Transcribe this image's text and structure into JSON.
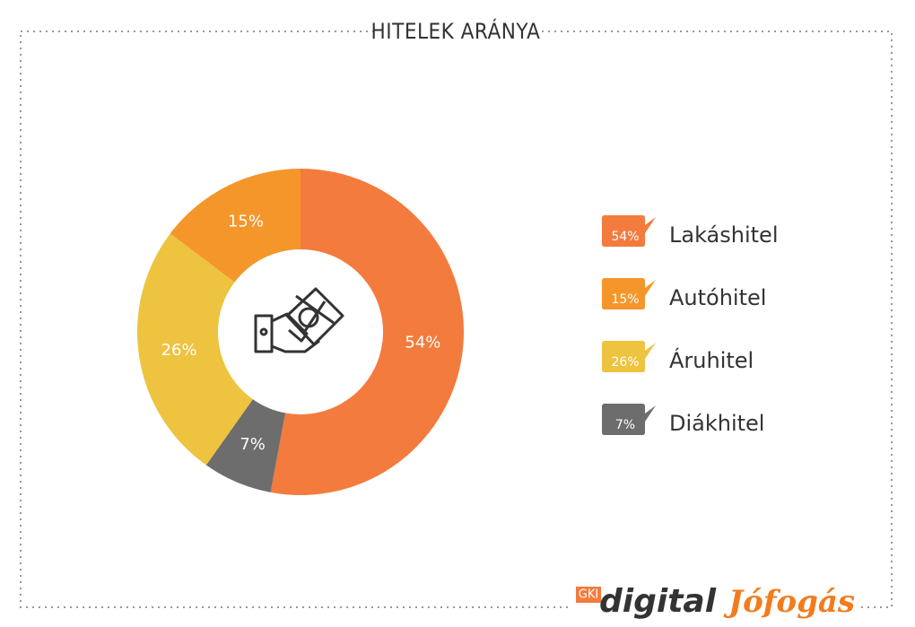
{
  "chart_data": {
    "type": "pie",
    "title": "HITELEK ARÁNYA",
    "categories": [
      "Lakáshitel",
      "Autóhitel",
      "Áruhitel",
      "Diákhitel"
    ],
    "values": [
      54,
      15,
      26,
      7
    ],
    "value_labels": [
      "54%",
      "15%",
      "26%",
      "7%"
    ],
    "colors": [
      "#f37b3d",
      "#f5962a",
      "#edc340",
      "#6d6d6d"
    ],
    "donut": true
  },
  "logos": {
    "gki": "GKI",
    "digital": "digital",
    "jofogas": "Jófogás"
  }
}
